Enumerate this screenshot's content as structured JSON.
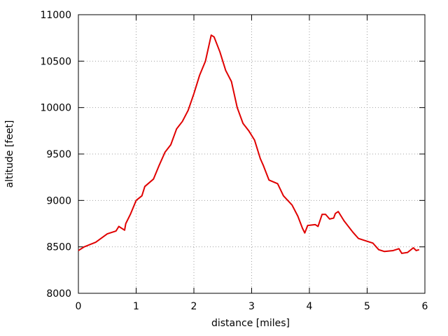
{
  "chart_data": {
    "type": "line",
    "xlabel": "distance [miles]",
    "ylabel": "altitude [feet]",
    "x": [
      0,
      0.1,
      0.3,
      0.5,
      0.65,
      0.7,
      0.8,
      0.82,
      0.9,
      1.0,
      1.1,
      1.15,
      1.3,
      1.4,
      1.5,
      1.6,
      1.7,
      1.8,
      1.9,
      2.0,
      2.1,
      2.2,
      2.3,
      2.35,
      2.45,
      2.55,
      2.65,
      2.75,
      2.85,
      2.95,
      3.05,
      3.15,
      3.2,
      3.3,
      3.45,
      3.55,
      3.7,
      3.8,
      3.88,
      3.92,
      3.97,
      4.1,
      4.15,
      4.22,
      4.28,
      4.35,
      4.42,
      4.45,
      4.5,
      4.6,
      4.75,
      4.85,
      5.0,
      5.1,
      5.2,
      5.3,
      5.45,
      5.55,
      5.6,
      5.7,
      5.8,
      5.85,
      5.9
    ],
    "values": [
      8460,
      8500,
      8550,
      8640,
      8670,
      8720,
      8680,
      8750,
      8850,
      9000,
      9050,
      9150,
      9230,
      9380,
      9520,
      9600,
      9770,
      9850,
      9970,
      10150,
      10350,
      10500,
      10780,
      10760,
      10600,
      10400,
      10280,
      10000,
      9830,
      9750,
      9650,
      9450,
      9380,
      9220,
      9180,
      9050,
      8950,
      8830,
      8700,
      8650,
      8730,
      8740,
      8720,
      8850,
      8850,
      8800,
      8810,
      8860,
      8880,
      8780,
      8660,
      8590,
      8560,
      8540,
      8470,
      8450,
      8460,
      8480,
      8430,
      8440,
      8490,
      8460,
      8470
    ],
    "color": "#e00000",
    "xlim": [
      0,
      6
    ],
    "xticks": [
      0,
      1,
      2,
      3,
      4,
      5,
      6
    ],
    "ylim": [
      8000,
      11000
    ],
    "yticks": [
      8000,
      8500,
      9000,
      9500,
      10000,
      10500,
      11000
    ],
    "grid": true
  }
}
